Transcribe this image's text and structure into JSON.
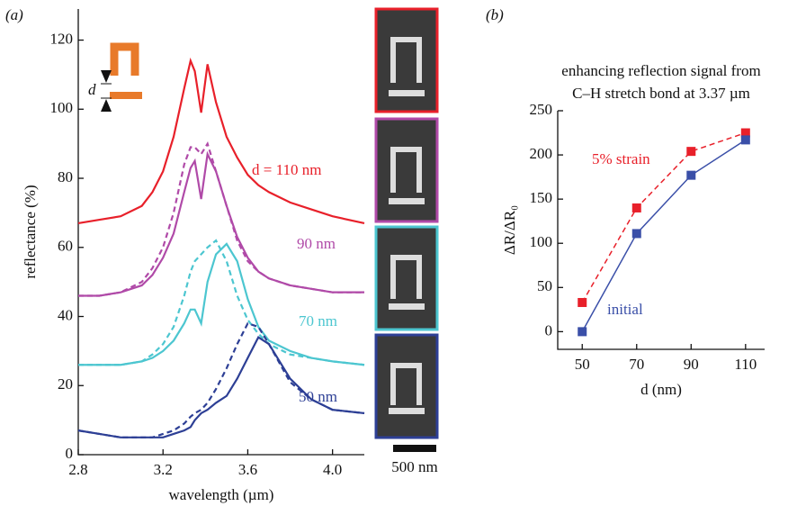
{
  "chart_data": [
    {
      "type": "line",
      "panel_label": "(a)",
      "x_label": "wavelength (µm)",
      "y_label": "reflectance (%)",
      "xlim": [
        2.8,
        4.15
      ],
      "ylim": [
        0,
        129
      ],
      "xticks": [
        2.8,
        3.2,
        3.6,
        {
          "value": 4,
          "label": "4.0"
        }
      ],
      "yticks": [
        0,
        20,
        40,
        60,
        80,
        100,
        120
      ],
      "x": [
        2.8,
        2.9,
        3.0,
        3.1,
        3.15,
        3.2,
        3.25,
        3.3,
        3.33,
        3.35,
        3.38,
        3.41,
        3.45,
        3.5,
        3.55,
        3.6,
        3.65,
        3.7,
        3.8,
        3.9,
        4.0,
        4.15
      ],
      "series": [
        {
          "name": "d = 110 nm",
          "color": "#e8202a",
          "values": [
            67,
            68,
            69,
            72,
            76,
            82,
            92,
            106,
            114,
            111,
            99,
            113,
            102,
            92,
            86,
            81,
            78,
            76,
            73,
            71,
            69,
            67
          ]
        },
        {
          "name": "90 nm",
          "color": "#b04aa8",
          "values": [
            46,
            46,
            47,
            49,
            52,
            57,
            64,
            76,
            83,
            85,
            74,
            87,
            82,
            72,
            63,
            57,
            53,
            51,
            49,
            48,
            47,
            47
          ],
          "values_dashed": [
            46,
            46,
            47,
            50,
            54,
            60,
            70,
            84,
            89,
            89,
            87,
            90,
            82,
            72,
            62,
            56,
            53,
            51,
            49,
            48,
            47,
            47
          ]
        },
        {
          "name": "70 nm",
          "color": "#4cc6d0",
          "values": [
            26,
            26,
            26,
            27,
            28,
            30,
            33,
            38,
            42,
            42,
            38,
            50,
            58,
            61,
            56,
            45,
            37,
            33,
            30,
            28,
            27,
            26
          ],
          "values_dashed": [
            26,
            26,
            26,
            27,
            29,
            32,
            37,
            46,
            53,
            56,
            58,
            60,
            62,
            56,
            46,
            39,
            35,
            32,
            29,
            28,
            27,
            26
          ]
        },
        {
          "name": "50 nm",
          "color": "#2d3f95",
          "values": [
            7,
            6,
            5,
            5,
            5,
            5,
            6,
            7,
            8,
            10,
            12,
            13,
            15,
            17,
            22,
            28,
            34,
            32,
            22,
            16,
            13,
            12
          ],
          "values_dashed": [
            7,
            6,
            5,
            5,
            5,
            6,
            7,
            9,
            11,
            12,
            13,
            15,
            19,
            25,
            32,
            38,
            37,
            32,
            21,
            16,
            13,
            12
          ]
        }
      ],
      "inset_label": "d",
      "scale_bar": "500 nm"
    },
    {
      "type": "line",
      "panel_label": "(b)",
      "title": [
        "enhancing reflection signal from",
        "C–H stretch bond at 3.37 µm"
      ],
      "x_label": "d (nm)",
      "y_label": "ΔR/ΔR₀",
      "xlim": [
        41,
        117
      ],
      "ylim": [
        -20,
        250
      ],
      "xticks": [
        50,
        70,
        90,
        110
      ],
      "yticks": [
        0,
        50,
        100,
        150,
        200,
        250
      ],
      "x": [
        50,
        70,
        90,
        110
      ],
      "series": [
        {
          "name": "5% strain",
          "color": "#e8202a",
          "dashed": true,
          "values": [
            33,
            140,
            204,
            225
          ]
        },
        {
          "name": "initial",
          "color": "#3a4fa8",
          "dashed": false,
          "values": [
            0,
            111,
            177,
            217
          ]
        }
      ]
    }
  ]
}
